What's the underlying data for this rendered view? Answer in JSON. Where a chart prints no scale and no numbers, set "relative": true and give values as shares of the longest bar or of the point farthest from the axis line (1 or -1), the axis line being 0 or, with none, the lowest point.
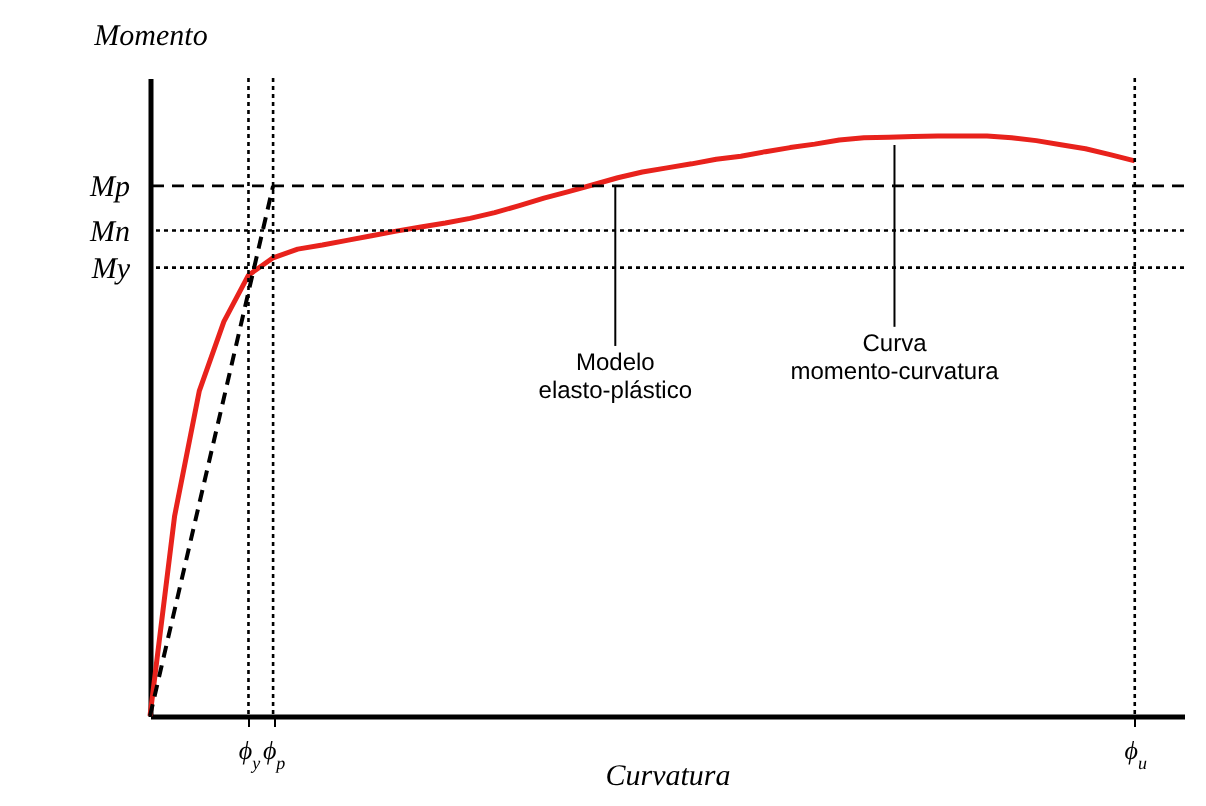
{
  "chart_data": {
    "type": "line",
    "relative": true,
    "xlabel": "Curvatura",
    "ylabel": "Momento",
    "marker": "none",
    "grid": false,
    "categories": [
      null,
      null,
      null,
      null,
      "ϕ$_{y}$",
      "ϕ$_{p}$",
      null,
      null,
      null,
      null,
      null,
      null,
      null,
      null,
      null,
      null,
      null,
      null,
      null,
      null,
      null,
      null,
      null,
      null,
      null,
      null,
      null,
      null,
      null,
      null,
      null,
      null,
      null,
      null,
      null,
      null,
      null,
      null,
      null,
      null,
      "ϕ$_{u}$"
    ],
    "series": [
      {
        "color": "#e8221c",
        "line_style": "solid",
        "values": [
          0,
          0.345,
          0.56,
          0.68,
          0.76,
          0.79,
          0.805,
          0.812,
          0.82,
          0.828,
          0.836,
          0.843,
          0.85,
          0.858,
          0.868,
          0.88,
          0.893,
          0.904,
          0.916,
          0.928,
          0.938,
          0.945,
          0.952,
          0.96,
          0.965,
          0.973,
          0.98,
          0.986,
          0.993,
          0.997,
          0.998,
          0.999,
          1.0,
          1.0,
          1.0,
          0.997,
          0.992,
          0.985,
          0.978,
          0.968,
          0.957
        ]
      },
      {
        "color": "#000000",
        "line_style": "dashed",
        "values": [
          0,
          0.183,
          0.366,
          0.548,
          0.731,
          0.914,
          null,
          null,
          null,
          null,
          null,
          null,
          null,
          null,
          null,
          null,
          null,
          null,
          null,
          null,
          null,
          null,
          null,
          null,
          null,
          null,
          null,
          null,
          null,
          null,
          null,
          null,
          null,
          null,
          null,
          null,
          null,
          null,
          null,
          null,
          null
        ]
      }
    ],
    "ref_lines": [
      {
        "axis": "y",
        "value": 0.914,
        "label": "Mp",
        "line_style": "dashed"
      },
      {
        "axis": "y",
        "value": 0.837,
        "label": "Mn",
        "line_style": "dotted"
      },
      {
        "axis": "y",
        "value": 0.773,
        "label": "My",
        "line_style": "dotted"
      },
      {
        "axis": "x",
        "value": "ϕ$_{y}$",
        "line_style": "dotted"
      },
      {
        "axis": "x",
        "value": "ϕ$_{p}$",
        "line_style": "dotted"
      },
      {
        "axis": "x",
        "value": "ϕ$_{u}$",
        "line_style": "dotted"
      }
    ],
    "annotations": [
      "Modelo elasto-plástico",
      "Curva momento-curvatura"
    ]
  }
}
